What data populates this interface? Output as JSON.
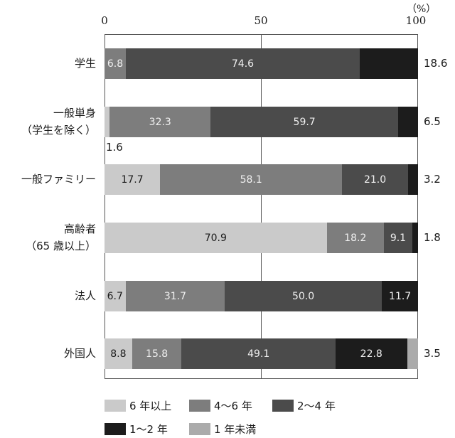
{
  "chart_data": {
    "type": "bar",
    "orientation": "horizontal",
    "stacked": true,
    "title": "",
    "xlabel": "",
    "ylabel": "",
    "unit_label": "（%）",
    "xlim": [
      0,
      100
    ],
    "x_ticks": [
      "0",
      "50",
      "100"
    ],
    "grid": "vertical line at 50",
    "legend_position": "bottom",
    "categories": [
      "学生",
      "一般単身（学生を除く）",
      "一般ファミリー",
      "高齢者（65 歳以上）",
      "法人",
      "外国人"
    ],
    "category_lines": [
      [
        "学生"
      ],
      [
        "一般単身",
        "（学生を除く）"
      ],
      [
        "一般ファミリー"
      ],
      [
        "高齢者",
        "（65 歳以上）"
      ],
      [
        "法人"
      ],
      [
        "外国人"
      ]
    ],
    "series": [
      {
        "name": "6 年以上",
        "color": "#cacaca",
        "values": [
          0,
          1.6,
          17.7,
          70.9,
          6.7,
          8.8
        ]
      },
      {
        "name": "4～6 年",
        "color": "#7d7d7d",
        "values": [
          6.8,
          32.3,
          58.1,
          18.2,
          31.7,
          15.8
        ]
      },
      {
        "name": "2～4 年",
        "color": "#4b4b4b",
        "values": [
          74.6,
          59.7,
          21.0,
          9.1,
          50.0,
          49.1
        ]
      },
      {
        "name": "1～2 年",
        "color": "#1c1c1c",
        "values": [
          18.6,
          6.5,
          3.2,
          1.8,
          11.7,
          22.8
        ]
      },
      {
        "name": "1 年未満",
        "color": "#ababab",
        "values": [
          0,
          0,
          0,
          0,
          0,
          3.5
        ]
      }
    ]
  },
  "labels": {
    "unit": "（%）",
    "ticks": [
      "0",
      "50",
      "100"
    ],
    "rows": [
      {
        "cat1": "学生",
        "cat2": "",
        "inside": [
          "",
          "6.8",
          "74.6",
          "",
          ""
        ],
        "outside": "18.6",
        "below": ""
      },
      {
        "cat1": "一般単身",
        "cat2": "（学生を除く）",
        "inside": [
          "",
          "32.3",
          "59.7",
          "",
          ""
        ],
        "outside": "6.5",
        "below": "1.6"
      },
      {
        "cat1": "一般ファミリー",
        "cat2": "",
        "inside": [
          "17.7",
          "58.1",
          "21.0",
          "",
          ""
        ],
        "outside": "3.2",
        "below": ""
      },
      {
        "cat1": "高齢者",
        "cat2": "（65 歳以上）",
        "inside": [
          "70.9",
          "18.2",
          "9.1",
          "",
          ""
        ],
        "outside": "1.8",
        "below": ""
      },
      {
        "cat1": "法人",
        "cat2": "",
        "inside": [
          "6.7",
          "31.7",
          "50.0",
          "11.7",
          ""
        ],
        "outside": "",
        "below": ""
      },
      {
        "cat1": "外国人",
        "cat2": "",
        "inside": [
          "8.8",
          "15.8",
          "49.1",
          "22.8",
          ""
        ],
        "outside": "3.5",
        "below": ""
      }
    ],
    "legend": [
      "6 年以上",
      "4～6 年",
      "2～4 年",
      "1～2 年",
      "1 年未満"
    ]
  }
}
